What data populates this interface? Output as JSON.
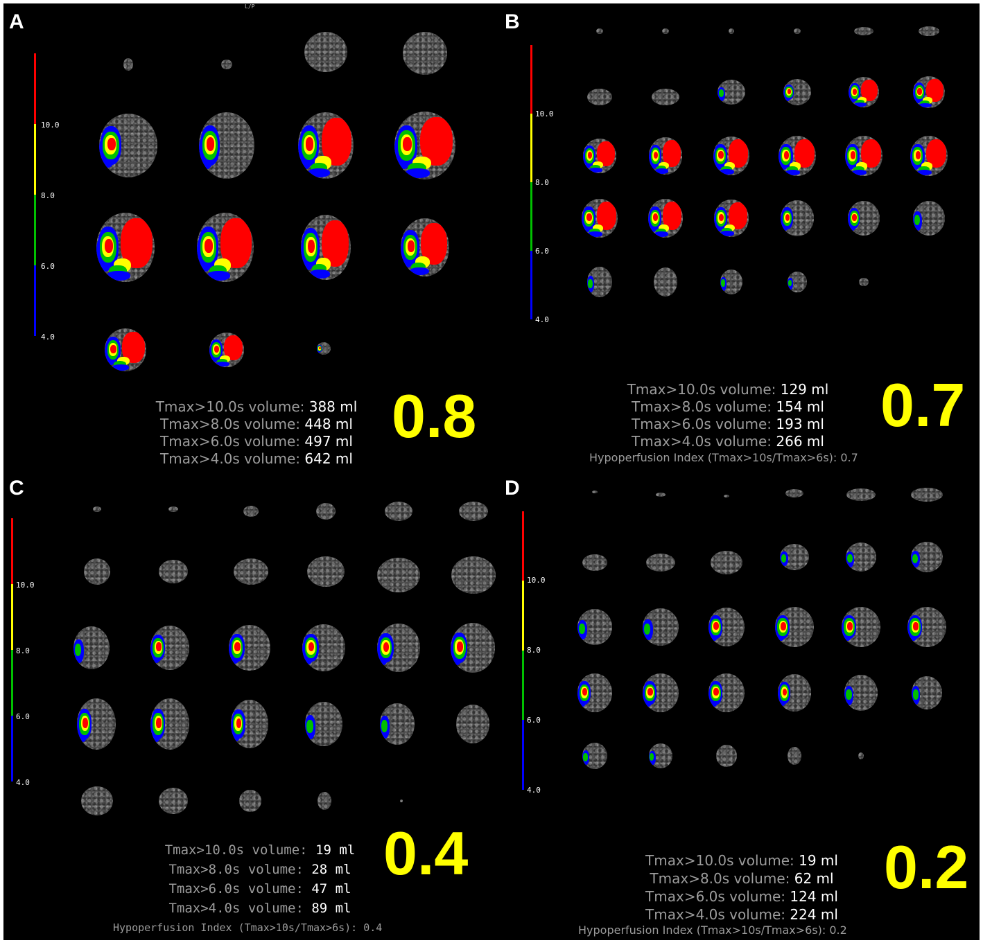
{
  "colors": {
    "background": "#000000",
    "core_red": "#ff0000",
    "yellow": "#ffff00",
    "green": "#00c000",
    "blue": "#0000ff",
    "label_gray": "#9c9c9c",
    "value_white": "#ffffff"
  },
  "orientation_marker": "L/P",
  "panels": [
    {
      "letter": "A",
      "scale_ticks": [
        "10.0",
        "8.0",
        "6.0",
        "4.0"
      ],
      "stats": [
        {
          "label": "Tmax>10.0s volume:",
          "value": "388 ml"
        },
        {
          "label": "Tmax>8.0s volume:",
          "value": "448 ml"
        },
        {
          "label": "Tmax>6.0s volume:",
          "value": "497 ml"
        },
        {
          "label": "Tmax>4.0s volume:",
          "value": "642 ml"
        }
      ],
      "hypoperfusion_index": "",
      "score": "0.8"
    },
    {
      "letter": "B",
      "scale_ticks": [
        "10.0",
        "8.0",
        "6.0",
        "4.0"
      ],
      "stats": [
        {
          "label": "Tmax>10.0s volume:",
          "value": "129 ml"
        },
        {
          "label": "Tmax>8.0s volume:",
          "value": "154 ml"
        },
        {
          "label": "Tmax>6.0s volume:",
          "value": "193 ml"
        },
        {
          "label": "Tmax>4.0s volume:",
          "value": "266 ml"
        }
      ],
      "hypoperfusion_index": "Hypoperfusion Index (Tmax>10s/Tmax>6s): 0.7",
      "score": "0.7"
    },
    {
      "letter": "C",
      "scale_ticks": [
        "10.0",
        "8.0",
        "6.0",
        "4.0"
      ],
      "stats": [
        {
          "label": "Tmax>10.0s volume:",
          "value": "19 ml"
        },
        {
          "label": "Tmax>8.0s volume:",
          "value": "28 ml"
        },
        {
          "label": "Tmax>6.0s volume:",
          "value": "47 ml"
        },
        {
          "label": "Tmax>4.0s volume:",
          "value": "89 ml"
        }
      ],
      "hypoperfusion_index": "Hypoperfusion Index (Tmax>10s/Tmax>6s): 0.4",
      "score": "0.4"
    },
    {
      "letter": "D",
      "scale_ticks": [
        "10.0",
        "8.0",
        "6.0",
        "4.0"
      ],
      "stats": [
        {
          "label": "Tmax>10.0s volume:",
          "value": "19 ml"
        },
        {
          "label": "Tmax>8.0s volume:",
          "value": "62 ml"
        },
        {
          "label": "Tmax>6.0s volume:",
          "value": "124 ml"
        },
        {
          "label": "Tmax>4.0s volume:",
          "value": "224 ml"
        }
      ],
      "hypoperfusion_index": "Hypoperfusion Index (Tmax>10s/Tmax>6s): 0.2",
      "score": "0.2"
    }
  ]
}
